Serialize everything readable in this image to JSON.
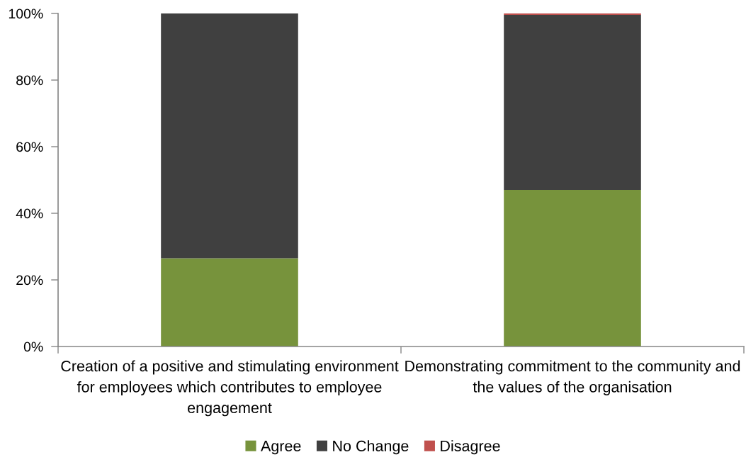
{
  "chart_data": {
    "type": "bar",
    "stacked": true,
    "categories": [
      "Creation of a positive and stimulating environment\nfor employees which contributes to employee\nengagement",
      "Demonstrating commitment to the community and\nthe values of the organisation"
    ],
    "series": [
      {
        "name": "Agree",
        "color": "#77933c",
        "values": [
          26.5,
          47.0
        ]
      },
      {
        "name": "No Change",
        "color": "#404040",
        "values": [
          73.5,
          52.6
        ]
      },
      {
        "name": "Disagree",
        "color": "#c0504d",
        "values": [
          0,
          0.4
        ]
      }
    ],
    "ylim": [
      0,
      100
    ],
    "yticks": [
      {
        "value": 0,
        "label": "0%"
      },
      {
        "value": 20,
        "label": "20%"
      },
      {
        "value": 40,
        "label": "40%"
      },
      {
        "value": 60,
        "label": "60%"
      },
      {
        "value": 80,
        "label": "80%"
      },
      {
        "value": 100,
        "label": "100%"
      }
    ],
    "legend": "bottom"
  }
}
